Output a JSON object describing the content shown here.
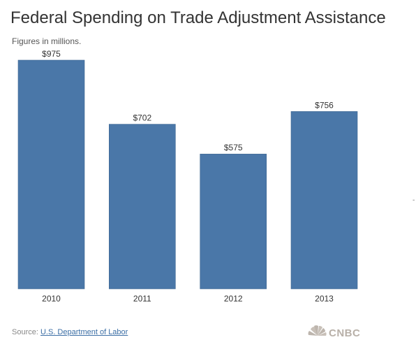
{
  "chart_data": {
    "type": "bar",
    "title": "Federal Spending on Trade Adjustment Assistance",
    "subtitle": "Figures in millions.",
    "categories": [
      "2010",
      "2011",
      "2012",
      "2013"
    ],
    "values": [
      975,
      702,
      575,
      756
    ],
    "value_labels": [
      "$975",
      "$702",
      "$575",
      "$756"
    ],
    "ylim": [
      0,
      975
    ],
    "grid": false,
    "bar_color": "#4a77a8"
  },
  "source": {
    "prefix": "Source:",
    "link": "U.S. Department of Labor"
  },
  "logo": {
    "text": "CNBC",
    "icon": "nbc-peacock-icon"
  },
  "stray_mark": "-"
}
